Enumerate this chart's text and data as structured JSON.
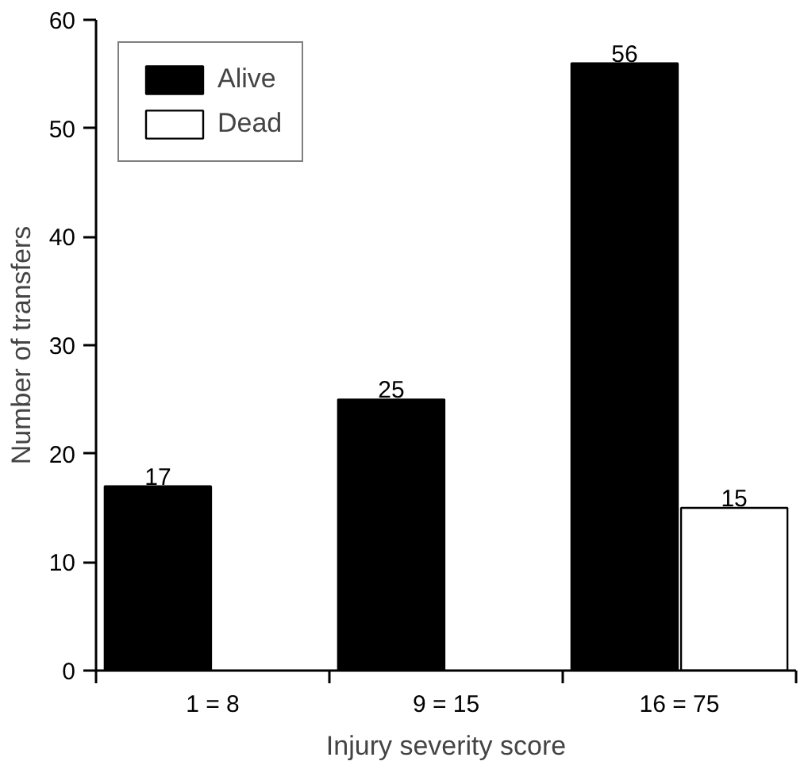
{
  "chart_data": {
    "type": "bar",
    "xlabel": "Injury severity score",
    "ylabel": "Number of transfers",
    "categories": [
      "1 = 8",
      "9 = 15",
      "16 = 75"
    ],
    "series": [
      {
        "name": "Alive",
        "color": "#000000",
        "values": [
          17,
          25,
          56
        ]
      },
      {
        "name": "Dead",
        "color": "#ffffff",
        "values": [
          null,
          null,
          15
        ]
      }
    ],
    "ylim": [
      0,
      60
    ],
    "yticks": [
      0,
      10,
      20,
      30,
      40,
      50,
      60
    ],
    "data_labels": true,
    "legend": "top left",
    "grid": false
  }
}
